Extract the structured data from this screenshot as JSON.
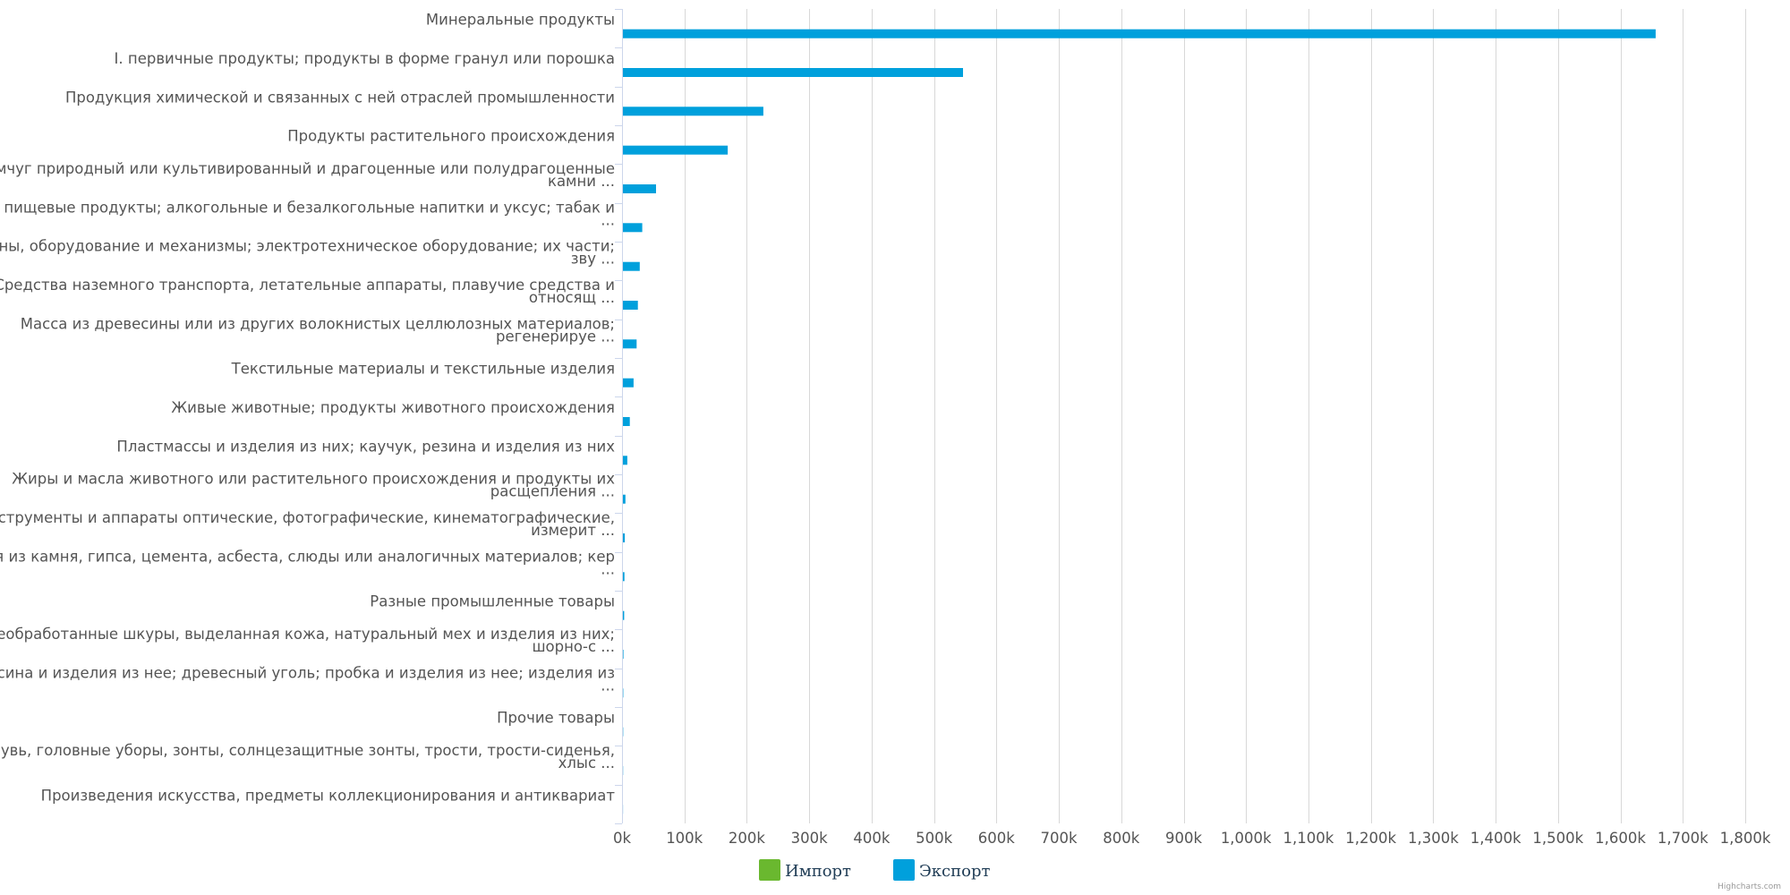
{
  "chart_data": {
    "type": "bar",
    "orientation": "horizontal",
    "title": "",
    "xlabel": "",
    "ylabel": "",
    "xlim": [
      0,
      1800000
    ],
    "grid": true,
    "legend_position": "bottom-center",
    "categories": [
      "Минеральные продукты",
      "I. первичные продукты; продукты в форме гранул или порошка",
      "Продукция химической и связанных с ней отраслей промышленности",
      "Продукты растительного происхождения",
      "Жемчуг природный или культивированный и драгоценные или полудрагоценные камни ...",
      "Готовые пищевые продукты; алкогольные и безалкогольные напитки и уксус; табак и ...",
      "Машины, оборудование и механизмы; электротехническое оборудование; их части; зву ...",
      "Средства наземного транспорта, летательные аппараты, плавучие средства и относящ ...",
      "Масса из древесины или из других волокнистых целлюлозных материалов; регенерируе ...",
      "Текстильные материалы и текстильные изделия",
      "Живые животные; продукты животного происхождения",
      "Пластмассы и изделия из них; каучук, резина и изделия из них",
      "Жиры и масла животного или растительного происхождения и продукты их расщепления ...",
      "Инструменты и аппараты оптические, фотографические, кинематографические, измерит ...",
      "Изделия из камня, гипса, цемента, асбеста, слюды или аналогичных материалов; кер ...",
      "Разные промышленные товары",
      "Необработанные шкуры, выделанная кожа, натуральный мех и изделия из них; шорно-с ...",
      "Древесина и изделия из нее; древесный уголь; пробка и изделия из нее; изделия из ...",
      "Прочие товары",
      "Обувь, головные уборы, зонты, солнцезащитные зонты, трости, трости-сиденья, хлыс ...",
      "Произведения искусства, предметы коллекционирования и антиквариат"
    ],
    "category_lines": [
      [
        "Минеральные продукты"
      ],
      [
        "I. первичные продукты; продукты в форме гранул или порошка"
      ],
      [
        "Продукция химической и связанных с ней отраслей промышленности"
      ],
      [
        "Продукты растительного происхождения"
      ],
      [
        "Жемчуг природный или культивированный и драгоценные или полудрагоценные",
        "камни ..."
      ],
      [
        "Готовые пищевые продукты; алкогольные и безалкогольные напитки и уксус; табак и",
        "..."
      ],
      [
        "Машины, оборудование и механизмы; электротехническое оборудование; их части;",
        "зву ..."
      ],
      [
        "Средства наземного транспорта, летательные аппараты, плавучие средства и",
        "относящ ..."
      ],
      [
        "Масса из древесины или из других волокнистых целлюлозных материалов;",
        "регенерируе ..."
      ],
      [
        "Текстильные материалы и текстильные изделия"
      ],
      [
        "Живые животные; продукты животного происхождения"
      ],
      [
        "Пластмассы и изделия из них; каучук, резина и изделия из них"
      ],
      [
        "Жиры и масла животного или растительного происхождения и продукты их",
        "расщепления ..."
      ],
      [
        "Инструменты и аппараты оптические, фотографические, кинематографические,",
        "измерит ..."
      ],
      [
        "Изделия из камня, гипса, цемента, асбеста, слюды или аналогичных материалов; кер",
        "..."
      ],
      [
        "Разные промышленные товары"
      ],
      [
        "Необработанные шкуры, выделанная кожа, натуральный мех и изделия из них;",
        "шорно-с ..."
      ],
      [
        "Древесина и изделия из нее; древесный уголь; пробка и изделия из нее; изделия из",
        "..."
      ],
      [
        "Прочие товары"
      ],
      [
        "Обувь, головные уборы, зонты, солнцезащитные зонты, трости, трости-сиденья,",
        "хлыс ..."
      ],
      [
        "Произведения искусства, предметы коллекционирования и антиквариат"
      ]
    ],
    "x_ticks": [
      0,
      100000,
      200000,
      300000,
      400000,
      500000,
      600000,
      700000,
      800000,
      900000,
      1000000,
      1100000,
      1200000,
      1300000,
      1400000,
      1500000,
      1600000,
      1700000,
      1800000
    ],
    "x_tick_labels": [
      "0k",
      "100k",
      "200k",
      "300k",
      "400k",
      "500k",
      "600k",
      "700k",
      "800k",
      "900k",
      "1,000k",
      "1,100k",
      "1,200k",
      "1,300k",
      "1,400k",
      "1,500k",
      "1,600k",
      "1,700k",
      "1,800k"
    ],
    "series": [
      {
        "name": "Импорт",
        "color": "#6ab82f",
        "values": [
          0,
          0,
          0,
          0,
          0,
          0,
          0,
          0,
          0,
          0,
          0,
          0,
          0,
          0,
          0,
          0,
          0,
          0,
          0,
          0,
          0
        ]
      },
      {
        "name": "Экспорт",
        "color": "#00a0dc",
        "values": [
          1655000,
          545000,
          225000,
          168000,
          53000,
          31000,
          27000,
          24000,
          22000,
          17000,
          11000,
          7000,
          4000,
          3000,
          2500,
          2000,
          800,
          600,
          400,
          300,
          200
        ]
      }
    ]
  },
  "colors": {
    "grid": "#d8d8d8",
    "axis": "#ccd6eb",
    "label": "#555555"
  },
  "credits": "Highcharts.com"
}
